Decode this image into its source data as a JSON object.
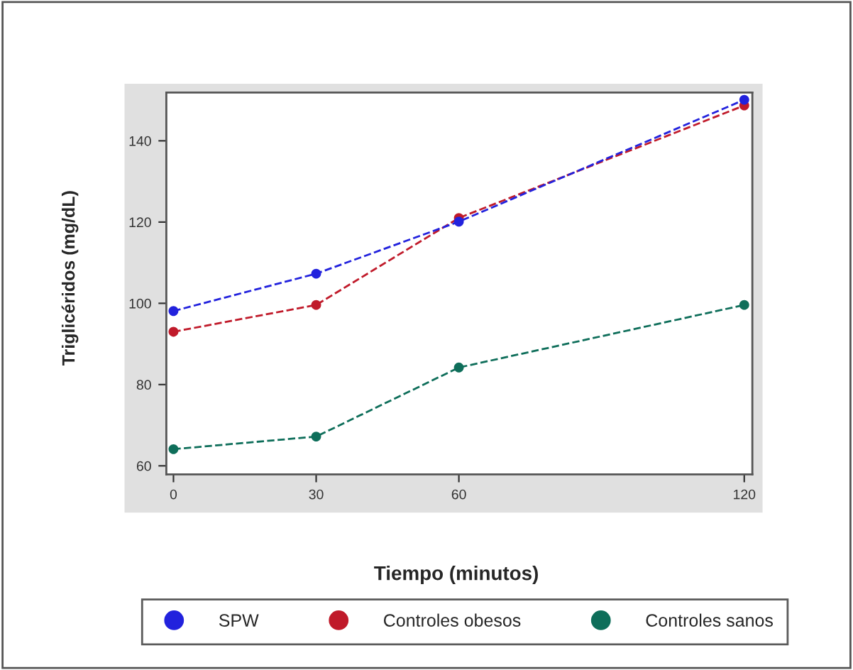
{
  "chart_data": {
    "type": "line",
    "xlabel": "Tiempo (minutos)",
    "ylabel": "Triglicéridos (mg/dL)",
    "x": [
      0,
      30,
      60,
      120
    ],
    "series": [
      {
        "name": "SPW",
        "color": "#2222dd",
        "values": [
          98.1,
          107.3,
          120.1,
          150.1
        ]
      },
      {
        "name": "Controles obesos",
        "color": "#c01a2a",
        "values": [
          93.0,
          99.6,
          121.0,
          148.7
        ]
      },
      {
        "name": "Controles sanos",
        "color": "#0e6e5a",
        "values": [
          64.1,
          67.2,
          84.2,
          99.6
        ]
      }
    ],
    "xlim": [
      -1.5,
      121.7
    ],
    "xticks": [
      0,
      30,
      60,
      120
    ],
    "ylim": [
      57.9,
      151.9
    ],
    "yticks": [
      60,
      80,
      100,
      120,
      140
    ],
    "grid": false,
    "legend": "bottom",
    "marker": "circle",
    "line_style": "dashed"
  }
}
